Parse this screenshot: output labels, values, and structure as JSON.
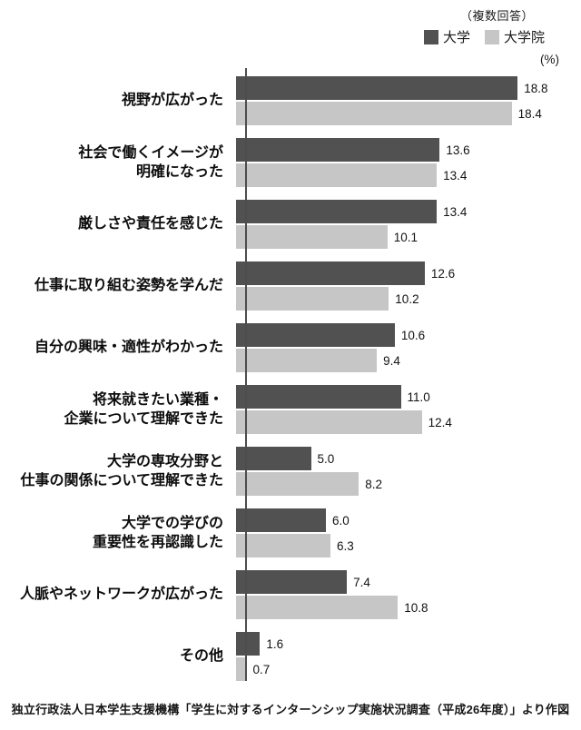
{
  "legend": {
    "note": "（複数回答）",
    "unit": "(%)"
  },
  "chart_data": {
    "type": "bar",
    "orientation": "horizontal",
    "title": "",
    "xlabel": "(%)",
    "ylabel": "",
    "xlim": [
      0,
      20
    ],
    "grid": false,
    "legend_position": "top-right",
    "value_labels": true,
    "categories": [
      "視野が広がった",
      "社会で働くイメージが\n明確になった",
      "厳しさや責任を感じた",
      "仕事に取り組む姿勢を学んだ",
      "自分の興味・適性がわかった",
      "将来就きたい業種・\n企業について理解できた",
      "大学の専攻分野と\n仕事の関係について理解できた",
      "大学での学びの\n重要性を再認識した",
      "人脈やネットワークが広がった",
      "その他"
    ],
    "series": [
      {
        "name": "大学",
        "color": "#515151",
        "values": [
          18.8,
          13.6,
          13.4,
          12.6,
          10.6,
          11.0,
          5.0,
          6.0,
          7.4,
          1.6
        ]
      },
      {
        "name": "大学院",
        "color": "#c6c6c6",
        "values": [
          18.4,
          13.4,
          10.1,
          10.2,
          9.4,
          12.4,
          8.2,
          6.3,
          10.8,
          0.7
        ]
      }
    ]
  },
  "footer": {
    "source": "独立行政法人日本学生支援機構「学生に対するインターンシップ実施状況調査（平成26年度）」より作図"
  }
}
